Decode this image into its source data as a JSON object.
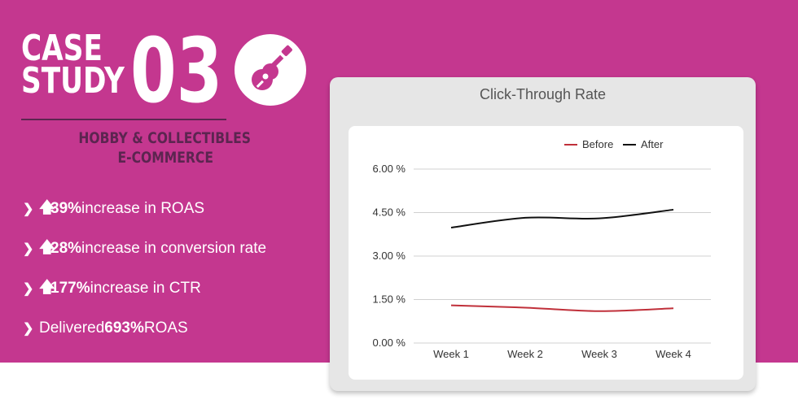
{
  "header": {
    "case_line1": "CASE",
    "case_line2": "STUDY",
    "number": "03",
    "icon": "guitar-icon",
    "subtitle_line1": "HOBBY & COLLECTIBLES",
    "subtitle_line2": "E-COMMERCE"
  },
  "bullets": [
    {
      "stat": "39%",
      "text": " increase in ROAS",
      "arrow": true
    },
    {
      "stat": "28%",
      "text": " increase in conversion rate",
      "arrow": true
    },
    {
      "stat": "177%",
      "text": " increase in CTR",
      "arrow": true
    },
    {
      "prefix": "Delivered ",
      "stat": "693%",
      "text": " ROAS",
      "arrow": false
    }
  ],
  "colors": {
    "panel": "#c4378f",
    "accent_dark": "#5c2550",
    "before_line": "#c0303a",
    "after_line": "#111111"
  },
  "chart_data": {
    "type": "line",
    "title": "Click-Through Rate",
    "categories": [
      "Week 1",
      "Week 2",
      "Week 3",
      "Week 4"
    ],
    "series": [
      {
        "name": "Before",
        "values": [
          1.3,
          1.22,
          1.1,
          1.2
        ]
      },
      {
        "name": "After",
        "values": [
          3.98,
          4.32,
          4.3,
          4.6
        ]
      }
    ],
    "ylim": [
      0,
      6
    ],
    "yticks": [
      "0.00 %",
      "1.50 %",
      "3.00 %",
      "4.50 %",
      "6.00 %"
    ],
    "ytick_values": [
      0,
      1.5,
      3,
      4.5,
      6
    ],
    "legend_position": "top",
    "grid": true
  }
}
